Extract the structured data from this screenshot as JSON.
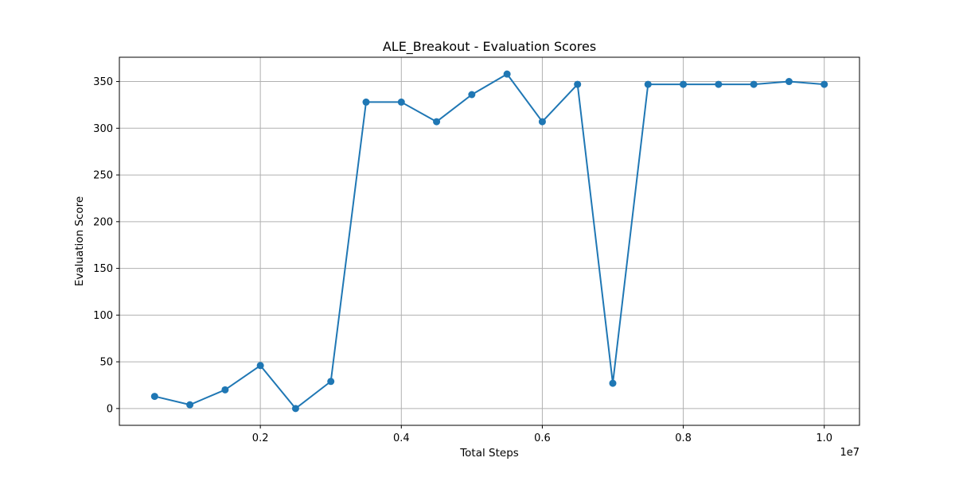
{
  "chart_data": {
    "type": "line",
    "title": "ALE_Breakout - Evaluation Scores",
    "xlabel": "Total Steps",
    "ylabel": "Evaluation Score",
    "x_offset_label": "1e7",
    "x_scale": 10000000,
    "xlim": [
      0,
      10500000
    ],
    "ylim": [
      -18,
      376
    ],
    "grid": true,
    "line_color": "#1f77b4",
    "marker": "circle",
    "x_ticks": [
      2000000,
      4000000,
      6000000,
      8000000,
      10000000
    ],
    "x_tick_labels": [
      "0.2",
      "0.4",
      "0.6",
      "0.8",
      "1.0"
    ],
    "y_ticks": [
      0,
      50,
      100,
      150,
      200,
      250,
      300,
      350
    ],
    "y_tick_labels": [
      "0",
      "50",
      "100",
      "150",
      "200",
      "250",
      "300",
      "350"
    ],
    "series": [
      {
        "x": [
          500000,
          1000000,
          1500000,
          2000000,
          2500000,
          3000000,
          3500000,
          4000000,
          4500000,
          5000000,
          5500000,
          6000000,
          6500000,
          7000000,
          7500000,
          8000000,
          8500000,
          9000000,
          9500000,
          10000000
        ],
        "values": [
          13,
          4,
          20,
          46,
          0,
          29,
          328,
          328,
          307,
          336,
          358,
          307,
          347,
          27,
          347,
          347,
          347,
          347,
          350,
          347
        ]
      }
    ]
  }
}
